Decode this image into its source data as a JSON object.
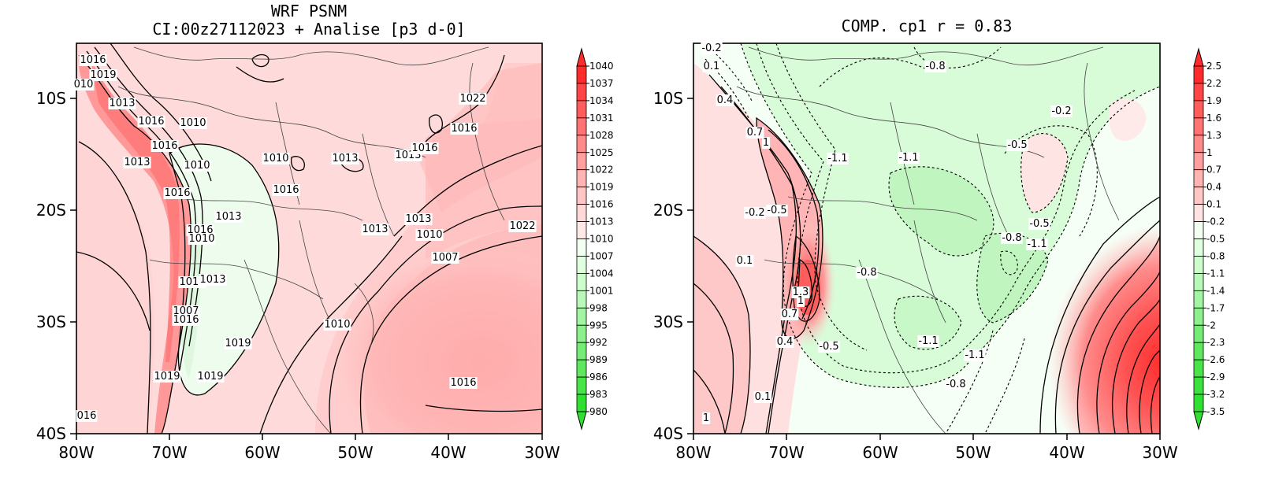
{
  "panels": [
    {
      "title_lines": [
        "WRF PSNM",
        "CI:00z27112023 + Analise  [p3 d-0]"
      ],
      "x_ticks": [
        "80W",
        "70W",
        "60W",
        "50W",
        "40W",
        "30W"
      ],
      "y_ticks": [
        "10S",
        "20S",
        "30S",
        "40S"
      ],
      "colorbar_labels": [
        "1040",
        "1037",
        "1034",
        "1031",
        "1028",
        "1025",
        "1022",
        "1019",
        "1016",
        "1013",
        "1010",
        "1007",
        "1004",
        "1001",
        "998",
        "995",
        "992",
        "989",
        "986",
        "983",
        "980"
      ],
      "colorbar_colors": [
        "#ff2b2b",
        "#ff4545",
        "#ff5c5c",
        "#ff7373",
        "#ff8a8a",
        "#ff9f9f",
        "#ffb3b3",
        "#ffc6c6",
        "#ffd8d8",
        "#ffe8e8",
        "#f3fff3",
        "#e0ffe0",
        "#cdfccd",
        "#b8f8b8",
        "#a2f5a2",
        "#8cf08c",
        "#75ec75",
        "#5ee85e",
        "#48e448",
        "#30e030"
      ],
      "contour_labels": [
        "1016",
        "1019",
        "010",
        "1013",
        "1016",
        "1010",
        "1016",
        "1013",
        "1010",
        "1010",
        "1013",
        "1013",
        "1016",
        "1016",
        "1016",
        "1013",
        "1016",
        "1010",
        "1010",
        "1013",
        "1013",
        "1013",
        "1010",
        "1007",
        "1010",
        "1016",
        "1007",
        "1016",
        "1019",
        "1019",
        "1019",
        "1022",
        "1016",
        "1022",
        "016"
      ]
    },
    {
      "title": "COMP. cp1  r =  0.83",
      "x_ticks": [
        "80W",
        "70W",
        "60W",
        "50W",
        "40W",
        "30W"
      ],
      "y_ticks": [
        "10S",
        "20S",
        "30S",
        "40S"
      ],
      "colorbar_labels": [
        "2.5",
        "2.2",
        "1.9",
        "1.6",
        "1.3",
        "1",
        "0.7",
        "0.4",
        "0.1",
        "-0.2",
        "-0.5",
        "-0.8",
        "-1.1",
        "-1.4",
        "-1.7",
        "-2",
        "-2.3",
        "-2.6",
        "-2.9",
        "-3.2",
        "-3.5"
      ],
      "colorbar_colors": [
        "#ff2b2b",
        "#ff4545",
        "#ff5c5c",
        "#ff7373",
        "#ff8a8a",
        "#ff9f9f",
        "#ffb3b3",
        "#ffc6c6",
        "#ffe2e2",
        "#f4fff4",
        "#e0ffe0",
        "#cdfccd",
        "#b8f8b8",
        "#a2f5a2",
        "#8cf08c",
        "#75ec75",
        "#5ee85e",
        "#48e448",
        "#3ce23c",
        "#30e030"
      ],
      "contour_labels": [
        "-0.2",
        "0.1",
        "0.4",
        "0.7",
        "1",
        "-0.8",
        "-1.1",
        "-1.1",
        "-0.2",
        "-0.5",
        "-0.2",
        "-0.5",
        "0.1",
        "-0.8",
        "-0.5",
        "-0.8",
        "-1.1",
        "1.3",
        "1",
        "0.7",
        "0.4",
        "-0.5",
        "-1.1",
        "-1.1",
        "-0.8",
        "0.1",
        "1"
      ]
    }
  ]
}
